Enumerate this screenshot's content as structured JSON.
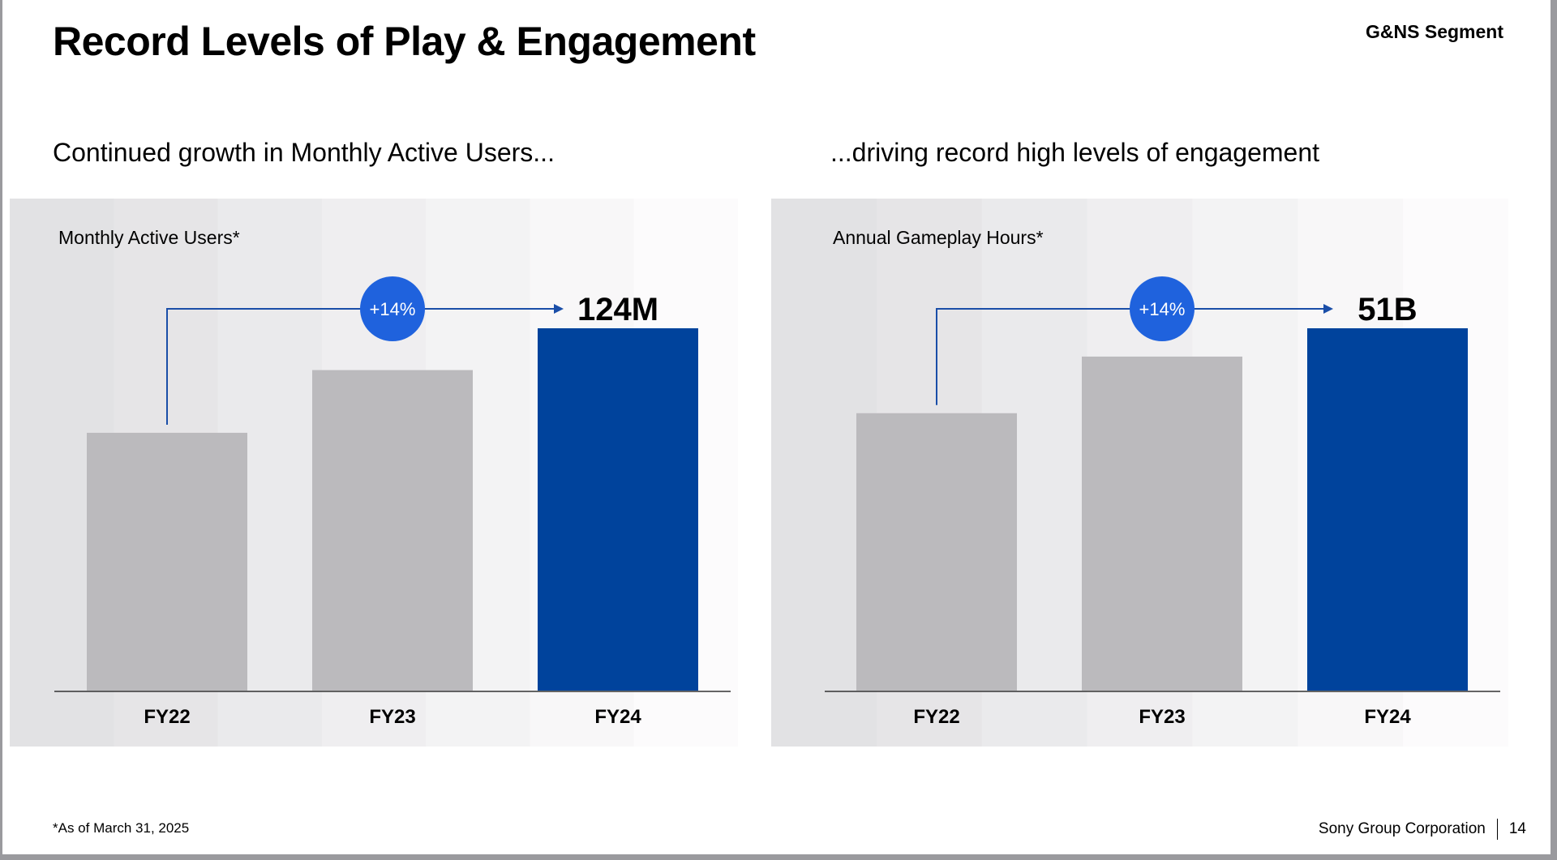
{
  "header": {
    "title": "Record Levels of Play & Engagement",
    "segment": "G&NS Segment"
  },
  "subtitles": {
    "left": "Continued growth in Monthly Active Users...",
    "right": "...driving record high levels of engagement"
  },
  "footer": {
    "footnote": "*As of March 31, 2025",
    "company": "Sony Group Corporation",
    "page": "14"
  },
  "colors": {
    "highlight_bar": "#00439c",
    "gray_bar": "#bbbabd",
    "growth_badge": "#1f62dd",
    "connector": "#1a4ea8"
  },
  "chart_data": [
    {
      "type": "bar",
      "title": "Monthly Active Users*",
      "categories": [
        "FY22",
        "FY23",
        "FY24"
      ],
      "values": [
        109,
        118,
        124
      ],
      "unit": "M",
      "value_label": "124M",
      "growth_label": "+14%",
      "ylim": [
        72,
        124
      ],
      "grid": false
    },
    {
      "type": "bar",
      "title": "Annual Gameplay Hours*",
      "categories": [
        "FY22",
        "FY23",
        "FY24"
      ],
      "values": [
        45,
        49,
        51
      ],
      "unit": "B",
      "value_label": "51B",
      "growth_label": "+14%",
      "ylim": [
        25.4,
        51
      ],
      "grid": false
    }
  ]
}
